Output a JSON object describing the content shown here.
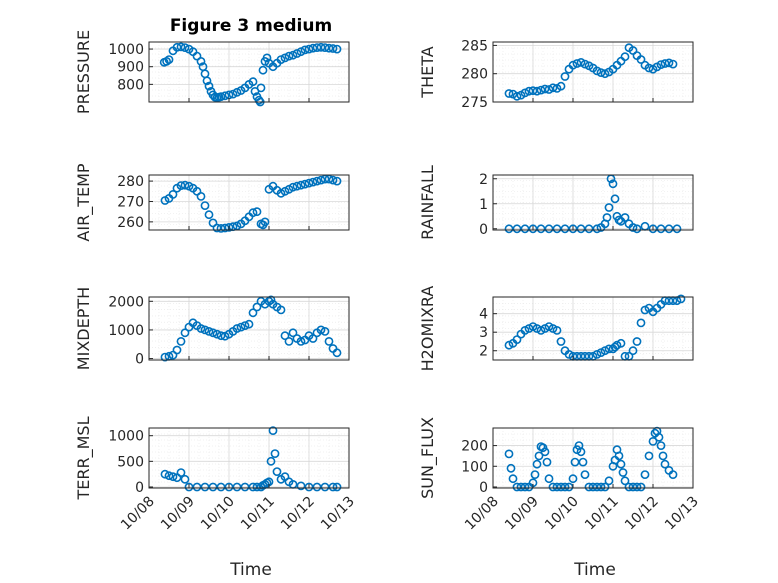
{
  "figure_title": "Figure 3 medium",
  "x_axis_label": "Time",
  "x_tick_labels": [
    "10/08",
    "10/09",
    "10/10",
    "10/11",
    "10/12",
    "10/13"
  ],
  "colors": {
    "marker": "#0072bd",
    "axis": "#262626",
    "grid": "#d8d8d8"
  },
  "chart_data": [
    {
      "type": "scatter",
      "name": "pressure",
      "ylabel": "PRESSURE",
      "yticks": [
        800,
        900,
        1000
      ],
      "ylim": [
        700,
        1040
      ],
      "xlim": [
        0,
        5
      ],
      "grid": true,
      "x": [
        0.38,
        0.44,
        0.5,
        0.6,
        0.7,
        0.8,
        0.9,
        1.0,
        1.1,
        1.2,
        1.3,
        1.35,
        1.4,
        1.45,
        1.5,
        1.55,
        1.6,
        1.65,
        1.7,
        1.75,
        1.8,
        1.9,
        2.0,
        2.1,
        2.2,
        2.3,
        2.4,
        2.5,
        2.6,
        2.65,
        2.7,
        2.75,
        2.78,
        2.8,
        2.85,
        2.9,
        2.95,
        3.0,
        3.1,
        3.2,
        3.3,
        3.4,
        3.5,
        3.6,
        3.7,
        3.8,
        3.9,
        4.0,
        4.1,
        4.2,
        4.3,
        4.4,
        4.5,
        4.6,
        4.7
      ],
      "y": [
        925,
        930,
        940,
        990,
        1010,
        1012,
        1008,
        1000,
        985,
        960,
        930,
        900,
        860,
        820,
        790,
        760,
        740,
        728,
        725,
        728,
        730,
        735,
        740,
        745,
        755,
        765,
        780,
        800,
        815,
        760,
        730,
        710,
        700,
        780,
        880,
        930,
        950,
        920,
        900,
        920,
        940,
        950,
        960,
        965,
        975,
        985,
        995,
        1000,
        1005,
        1008,
        1010,
        1008,
        1005,
        1003,
        1000
      ]
    },
    {
      "type": "scatter",
      "name": "theta",
      "ylabel": "THETA",
      "yticks": [
        275,
        280,
        285
      ],
      "ylim": [
        275,
        285.6
      ],
      "xlim": [
        0,
        5
      ],
      "grid": true,
      "x": [
        0.4,
        0.5,
        0.6,
        0.7,
        0.8,
        0.9,
        1.0,
        1.1,
        1.2,
        1.3,
        1.4,
        1.5,
        1.6,
        1.7,
        1.8,
        1.9,
        2.0,
        2.1,
        2.2,
        2.3,
        2.4,
        2.5,
        2.6,
        2.7,
        2.8,
        2.9,
        3.0,
        3.1,
        3.2,
        3.3,
        3.4,
        3.5,
        3.6,
        3.7,
        3.8,
        3.9,
        4.0,
        4.1,
        4.2,
        4.3,
        4.4,
        4.5
      ],
      "y": [
        276.5,
        276.4,
        276.0,
        276.2,
        276.6,
        276.9,
        277.0,
        276.9,
        277.1,
        277.3,
        277.2,
        277.5,
        277.4,
        277.8,
        279.5,
        280.8,
        281.5,
        281.8,
        282.0,
        281.7,
        281.4,
        281.0,
        280.5,
        280.2,
        280.0,
        280.3,
        280.8,
        281.5,
        282.2,
        283.0,
        284.6,
        284.1,
        283.2,
        282.5,
        281.5,
        281.0,
        280.8,
        281.2,
        281.6,
        281.8,
        281.9,
        281.7
      ]
    },
    {
      "type": "scatter",
      "name": "air_temp",
      "ylabel": "AIR_TEMP",
      "yticks": [
        260,
        270,
        280
      ],
      "ylim": [
        256,
        283
      ],
      "xlim": [
        0,
        5
      ],
      "grid": true,
      "x": [
        0.4,
        0.5,
        0.6,
        0.7,
        0.8,
        0.9,
        1.0,
        1.1,
        1.2,
        1.3,
        1.4,
        1.5,
        1.6,
        1.7,
        1.8,
        1.9,
        2.0,
        2.1,
        2.2,
        2.3,
        2.4,
        2.5,
        2.6,
        2.7,
        2.8,
        2.85,
        2.9,
        3.0,
        3.1,
        3.2,
        3.3,
        3.4,
        3.5,
        3.6,
        3.7,
        3.8,
        3.9,
        4.0,
        4.1,
        4.2,
        4.3,
        4.4,
        4.5,
        4.6,
        4.7
      ],
      "y": [
        270.5,
        271.5,
        273.5,
        276.5,
        277.8,
        278.0,
        277.5,
        276.5,
        275.0,
        272.5,
        268.0,
        263.5,
        259.5,
        257.0,
        256.8,
        257.0,
        257.3,
        257.6,
        258.0,
        259.0,
        260.5,
        262.5,
        264.5,
        265.0,
        259.0,
        258.5,
        260.0,
        276.0,
        277.5,
        275.5,
        274.0,
        275.0,
        276.0,
        277.0,
        277.5,
        278.0,
        278.5,
        279.0,
        279.5,
        280.0,
        280.5,
        281.0,
        281.0,
        280.5,
        280.0
      ]
    },
    {
      "type": "scatter",
      "name": "rainfall",
      "ylabel": "RAINFALL",
      "yticks": [
        0,
        1,
        2
      ],
      "ylim": [
        -0.05,
        2.15
      ],
      "xlim": [
        0,
        5
      ],
      "grid": true,
      "x": [
        0.4,
        0.6,
        0.8,
        1.0,
        1.2,
        1.4,
        1.6,
        1.8,
        2.0,
        2.2,
        2.4,
        2.6,
        2.7,
        2.8,
        2.85,
        2.9,
        2.95,
        3.0,
        3.05,
        3.1,
        3.15,
        3.2,
        3.3,
        3.4,
        3.5,
        3.6,
        3.8,
        4.0,
        4.2,
        4.4,
        4.6
      ],
      "y": [
        0,
        0,
        0,
        0,
        0,
        0,
        0,
        0,
        0,
        0,
        0,
        0,
        0.05,
        0.2,
        0.45,
        0.85,
        2.0,
        1.8,
        1.2,
        0.5,
        0.35,
        0.3,
        0.45,
        0.2,
        0.05,
        0,
        0.1,
        0,
        0,
        0,
        0
      ]
    },
    {
      "type": "scatter",
      "name": "mixdepth",
      "ylabel": "MIXDEPTH",
      "yticks": [
        0,
        1000,
        2000
      ],
      "ylim": [
        -50,
        2150
      ],
      "xlim": [
        0,
        5
      ],
      "grid": true,
      "x": [
        0.4,
        0.5,
        0.6,
        0.7,
        0.8,
        0.9,
        1.0,
        1.1,
        1.2,
        1.3,
        1.4,
        1.5,
        1.6,
        1.7,
        1.8,
        1.9,
        2.0,
        2.1,
        2.2,
        2.3,
        2.4,
        2.5,
        2.6,
        2.7,
        2.8,
        2.9,
        3.0,
        3.05,
        3.1,
        3.2,
        3.3,
        3.4,
        3.5,
        3.6,
        3.7,
        3.8,
        3.9,
        4.0,
        4.1,
        4.2,
        4.3,
        4.4,
        4.5,
        4.6,
        4.7
      ],
      "y": [
        50,
        80,
        120,
        300,
        600,
        900,
        1100,
        1250,
        1150,
        1050,
        1000,
        950,
        900,
        850,
        800,
        780,
        850,
        950,
        1050,
        1100,
        1150,
        1200,
        1600,
        1800,
        2000,
        1900,
        2000,
        2050,
        1900,
        1800,
        1700,
        800,
        600,
        900,
        700,
        600,
        650,
        800,
        700,
        900,
        1000,
        950,
        600,
        350,
        200
      ]
    },
    {
      "type": "scatter",
      "name": "h2omixra",
      "ylabel": "H2OMIXRA",
      "yticks": [
        2,
        3,
        4
      ],
      "ylim": [
        1.5,
        4.9
      ],
      "xlim": [
        0,
        5
      ],
      "grid": true,
      "x": [
        0.4,
        0.5,
        0.6,
        0.7,
        0.8,
        0.9,
        1.0,
        1.1,
        1.2,
        1.3,
        1.4,
        1.5,
        1.6,
        1.7,
        1.8,
        1.9,
        2.0,
        2.1,
        2.2,
        2.3,
        2.4,
        2.5,
        2.6,
        2.7,
        2.8,
        2.9,
        3.0,
        3.05,
        3.1,
        3.2,
        3.3,
        3.4,
        3.5,
        3.6,
        3.7,
        3.8,
        3.9,
        4.0,
        4.1,
        4.2,
        4.3,
        4.4,
        4.5,
        4.6,
        4.7
      ],
      "y": [
        2.3,
        2.4,
        2.6,
        2.9,
        3.1,
        3.2,
        3.3,
        3.2,
        3.1,
        3.2,
        3.3,
        3.2,
        3.1,
        2.5,
        2.0,
        1.8,
        1.7,
        1.7,
        1.7,
        1.7,
        1.7,
        1.7,
        1.8,
        1.9,
        2.0,
        2.1,
        2.1,
        2.2,
        2.3,
        2.4,
        1.7,
        1.7,
        2.0,
        2.5,
        3.5,
        4.2,
        4.3,
        4.1,
        4.3,
        4.5,
        4.7,
        4.7,
        4.7,
        4.7,
        4.8
      ]
    },
    {
      "type": "scatter",
      "name": "terr_msl",
      "ylabel": "TERR_MSL",
      "yticks": [
        0,
        500,
        1000
      ],
      "ylim": [
        -20,
        1150
      ],
      "xlim": [
        0,
        5
      ],
      "grid": true,
      "x": [
        0.4,
        0.5,
        0.6,
        0.7,
        0.8,
        0.9,
        1.0,
        1.2,
        1.4,
        1.6,
        1.8,
        2.0,
        2.2,
        2.4,
        2.6,
        2.7,
        2.8,
        2.85,
        2.9,
        2.95,
        3.0,
        3.05,
        3.1,
        3.15,
        3.2,
        3.3,
        3.4,
        3.5,
        3.6,
        3.8,
        4.0,
        4.2,
        4.4,
        4.6,
        4.7
      ],
      "y": [
        250,
        220,
        200,
        180,
        280,
        150,
        0,
        0,
        0,
        0,
        0,
        0,
        0,
        0,
        0,
        0,
        0,
        30,
        50,
        80,
        100,
        500,
        1100,
        650,
        300,
        150,
        200,
        100,
        50,
        20,
        0,
        0,
        0,
        0,
        0
      ]
    },
    {
      "type": "scatter",
      "name": "sun_flux",
      "ylabel": "SUN_FLUX",
      "yticks": [
        0,
        100,
        200
      ],
      "ylim": [
        -5,
        285
      ],
      "xlim": [
        0,
        5
      ],
      "grid": true,
      "x": [
        0.4,
        0.45,
        0.5,
        0.6,
        0.7,
        0.8,
        0.9,
        1.0,
        1.05,
        1.1,
        1.15,
        1.2,
        1.25,
        1.3,
        1.35,
        1.4,
        1.5,
        1.6,
        1.7,
        1.8,
        1.9,
        2.0,
        2.05,
        2.1,
        2.15,
        2.2,
        2.25,
        2.3,
        2.4,
        2.5,
        2.6,
        2.7,
        2.8,
        2.9,
        3.0,
        3.05,
        3.1,
        3.15,
        3.2,
        3.25,
        3.3,
        3.4,
        3.5,
        3.6,
        3.7,
        3.8,
        3.9,
        4.0,
        4.05,
        4.1,
        4.15,
        4.2,
        4.25,
        4.3,
        4.4,
        4.5
      ],
      "y": [
        160,
        90,
        40,
        0,
        0,
        0,
        0,
        20,
        60,
        110,
        150,
        195,
        190,
        170,
        120,
        40,
        0,
        0,
        0,
        0,
        0,
        40,
        120,
        180,
        200,
        170,
        120,
        60,
        0,
        0,
        0,
        0,
        0,
        30,
        100,
        130,
        180,
        150,
        110,
        70,
        30,
        0,
        0,
        0,
        0,
        60,
        150,
        220,
        260,
        270,
        240,
        200,
        150,
        110,
        80,
        60
      ]
    }
  ]
}
